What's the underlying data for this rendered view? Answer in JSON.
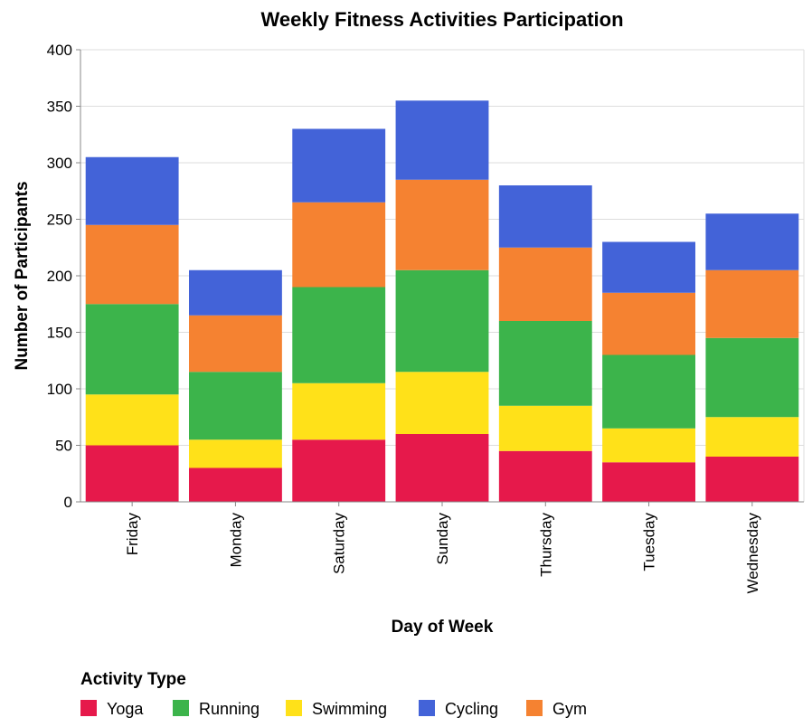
{
  "chart_data": {
    "type": "bar",
    "stacked": true,
    "title": "Weekly Fitness Activities Participation",
    "xlabel": "Day of Week",
    "ylabel": "Number of Participants",
    "ylim": [
      0,
      400
    ],
    "yticks": [
      0,
      50,
      100,
      150,
      200,
      250,
      300,
      350,
      400
    ],
    "grid": true,
    "legend_title": "Activity Type",
    "legend_position": "bottom-left",
    "categories": [
      "Friday",
      "Monday",
      "Saturday",
      "Sunday",
      "Thursday",
      "Tuesday",
      "Wednesday"
    ],
    "series": [
      {
        "name": "Yoga",
        "color": "#e6194b",
        "values": [
          50,
          30,
          55,
          60,
          45,
          35,
          40
        ]
      },
      {
        "name": "Swimming",
        "color": "#ffe119",
        "values": [
          45,
          25,
          50,
          55,
          40,
          30,
          35
        ]
      },
      {
        "name": "Running",
        "color": "#3cb44b",
        "values": [
          80,
          60,
          85,
          90,
          75,
          65,
          70
        ]
      },
      {
        "name": "Gym",
        "color": "#f58231",
        "values": [
          70,
          50,
          75,
          80,
          65,
          55,
          60
        ]
      },
      {
        "name": "Cycling",
        "color": "#4363d8",
        "values": [
          60,
          40,
          65,
          70,
          55,
          45,
          50
        ]
      }
    ],
    "legend_order": [
      "Yoga",
      "Running",
      "Swimming",
      "Cycling",
      "Gym"
    ]
  }
}
